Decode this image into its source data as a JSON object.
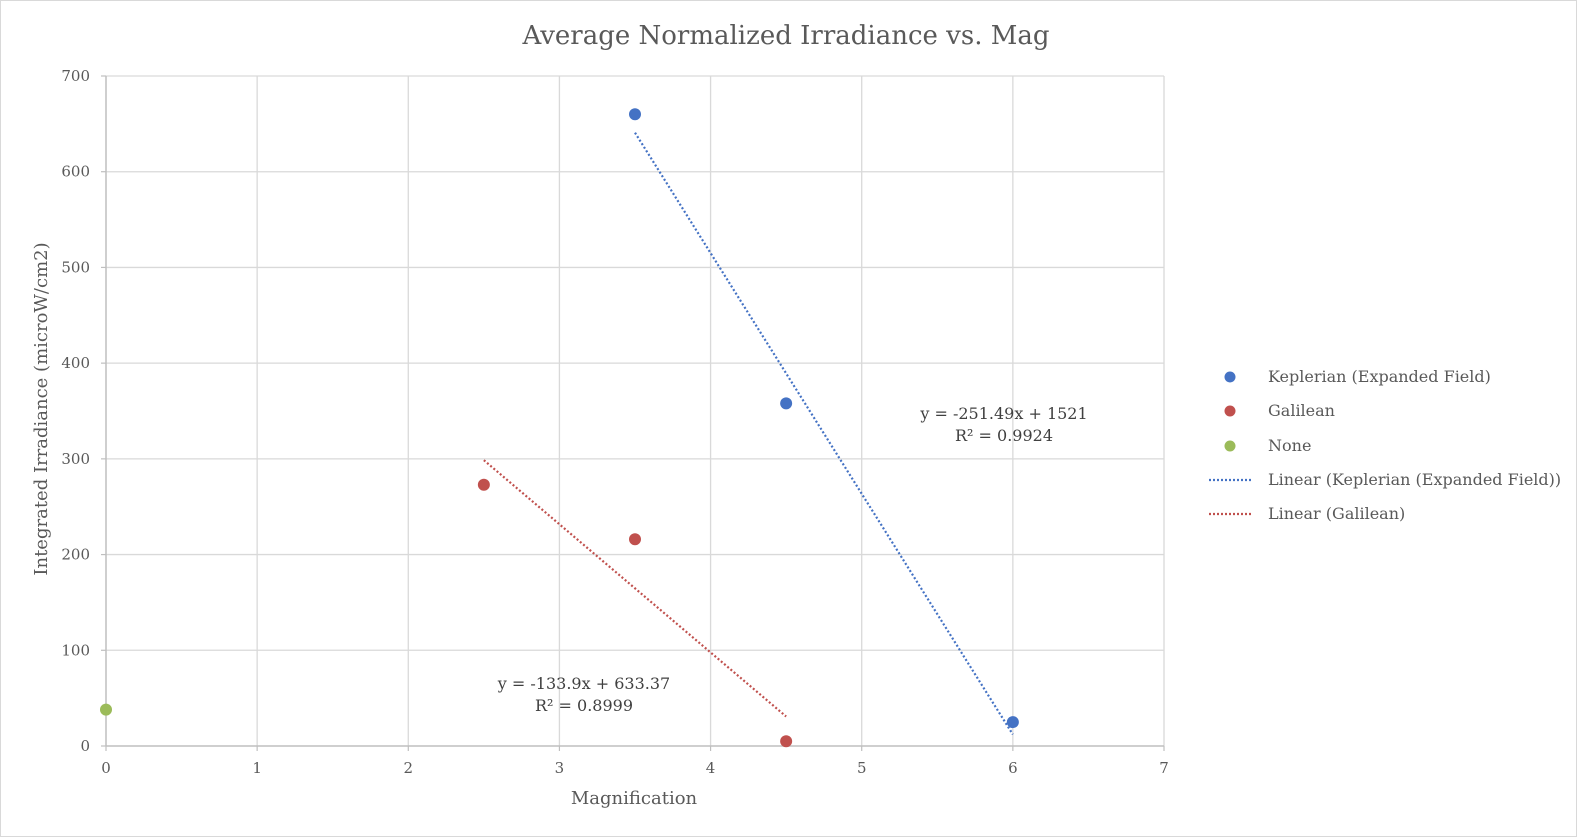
{
  "chart_data": {
    "type": "scatter",
    "title": "Average Normalized Irradiance vs. Mag",
    "xlabel": "Magnification",
    "ylabel": "Integrated Irradiance (microW/cm2)",
    "xlim": [
      0,
      7
    ],
    "ylim": [
      0,
      700
    ],
    "xticks": [
      0,
      1,
      2,
      3,
      4,
      5,
      6,
      7
    ],
    "yticks": [
      0,
      100,
      200,
      300,
      400,
      500,
      600,
      700
    ],
    "grid": true,
    "legend_position": "right",
    "series": [
      {
        "name": "Keplerian (Expanded Field)",
        "color": "#4472c4",
        "points": [
          {
            "x": 3.5,
            "y": 660
          },
          {
            "x": 4.5,
            "y": 358
          },
          {
            "x": 6,
            "y": 25
          }
        ]
      },
      {
        "name": "Galilean",
        "color": "#c0504d",
        "points": [
          {
            "x": 2.5,
            "y": 273
          },
          {
            "x": 3.5,
            "y": 216
          },
          {
            "x": 4.5,
            "y": 5
          }
        ]
      },
      {
        "name": "None",
        "color": "#9bbb59",
        "points": [
          {
            "x": 0,
            "y": 38
          }
        ]
      }
    ],
    "trendlines": [
      {
        "name": "Linear (Keplerian (Expanded Field))",
        "color": "#4472c4",
        "slope": -251.49,
        "intercept": 1521,
        "x_from": 3.5,
        "x_to": 6,
        "equation": "y = -251.49x + 1521",
        "r2_label": "R² = 0.9924"
      },
      {
        "name": "Linear (Galilean)",
        "color": "#c0504d",
        "slope": -133.9,
        "intercept": 633.37,
        "x_from": 2.5,
        "x_to": 4.5,
        "equation": "y = -133.9x + 633.37",
        "r2_label": "R² = 0.8999"
      }
    ]
  }
}
